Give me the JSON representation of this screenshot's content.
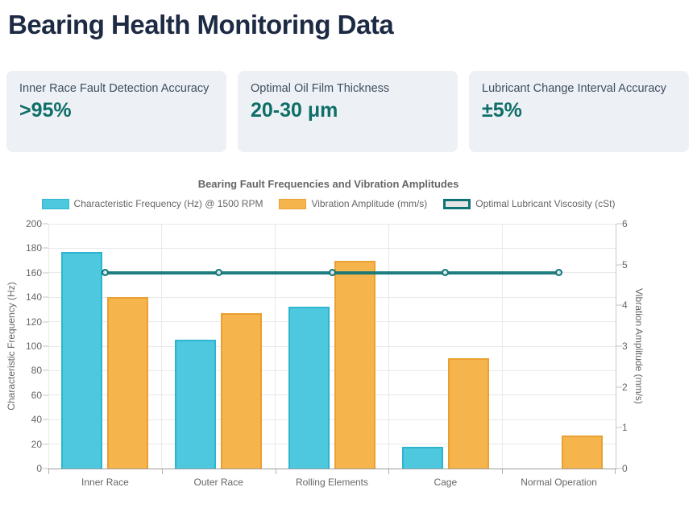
{
  "header": {
    "title": "Bearing Health Monitoring Data"
  },
  "stats": [
    {
      "label": "Inner Race Fault Detection Accuracy",
      "value": ">95%"
    },
    {
      "label": "Optimal Oil Film Thickness",
      "value": "20-30 μm"
    },
    {
      "label": "Lubricant Change Interval Accuracy",
      "value": "±5%"
    }
  ],
  "colors": {
    "heading": "#1d2a44",
    "card_value_teal": "#0e6f68",
    "frequency_bar": "#4dc8de",
    "frequency_bar_border": "#2db5cf",
    "amplitude_bar": "#f6b44c",
    "amplitude_bar_border": "#eaa032",
    "viscosity_line": "#0d7377"
  },
  "chart_data": {
    "type": "bar",
    "title": "Bearing Fault Frequencies and Vibration Amplitudes",
    "categories": [
      "Inner Race",
      "Outer Race",
      "Rolling Elements",
      "Cage",
      "Normal Operation"
    ],
    "series": [
      {
        "name": "Characteristic Frequency (Hz) @ 1500 RPM",
        "type": "bar",
        "yaxis": "left",
        "values": [
          177,
          105,
          132,
          18,
          0
        ],
        "color": "#4dc8de",
        "border_color": "#2db5cf"
      },
      {
        "name": "Vibration Amplitude (mm/s)",
        "type": "bar",
        "yaxis": "right",
        "values": [
          4.2,
          3.8,
          5.1,
          2.7,
          0.8
        ],
        "color": "#f6b44c",
        "border_color": "#eaa032"
      },
      {
        "name": "Optimal Lubricant Viscosity (cSt)",
        "type": "line",
        "yaxis": "right",
        "values": [
          4.8,
          4.8,
          4.8,
          4.8,
          4.8
        ],
        "color": "#0d7377"
      }
    ],
    "left_axis": {
      "label": "Characteristic Frequency (Hz)",
      "min": 0,
      "max": 200,
      "step": 20
    },
    "right_axis": {
      "label": "Vibration Amplitude (mm/s)",
      "min": 0,
      "max": 6,
      "step": 1
    },
    "grid": true,
    "legend_position": "top"
  }
}
